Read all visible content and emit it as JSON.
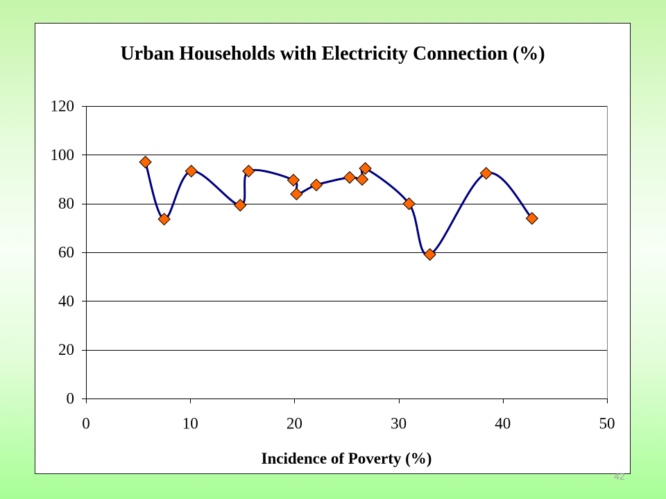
{
  "slide": {
    "page_number": "42"
  },
  "colors": {
    "line": "#000080",
    "marker_fill": "#FF6600",
    "marker_stroke": "#000000",
    "gridline": "#000000"
  },
  "chart_data": {
    "type": "line",
    "title": "Urban Households with Electricity Connection (%)",
    "xlabel": "Incidence of Poverty (%)",
    "xlim": [
      0,
      50
    ],
    "ylim": [
      0,
      120
    ],
    "xticks": [
      0,
      10,
      20,
      30,
      40,
      50
    ],
    "yticks": [
      0,
      20,
      40,
      60,
      80,
      100,
      120
    ],
    "grid": "horizontal",
    "legend": "none",
    "line_style": "smoothed",
    "marker": "diamond",
    "series": [
      {
        "x": [
          5.7,
          7.5,
          10.1,
          14.8,
          15.6,
          19.9,
          20.2,
          22.1,
          25.3,
          26.5,
          26.8,
          31.0,
          33.0,
          38.4,
          42.8
        ],
        "y": [
          97.0,
          73.6,
          93.3,
          79.3,
          93.3,
          89.6,
          83.9,
          87.6,
          90.7,
          89.9,
          94.4,
          79.9,
          59.1,
          92.4,
          73.9
        ]
      }
    ]
  }
}
